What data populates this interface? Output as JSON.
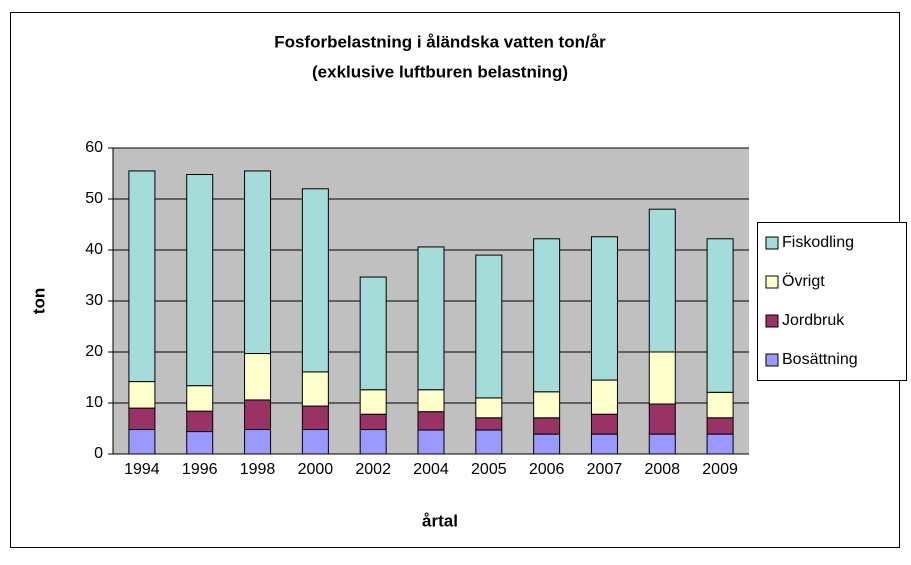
{
  "chart_data": {
    "type": "stacked_bar",
    "title": "Fosforbelastning i åländska vatten ton/år",
    "subtitle": "(exklusive luftburen belastning)",
    "x_label": "årtal",
    "y_label": "ton",
    "categories": [
      "1994",
      "1996",
      "1998",
      "2000",
      "2002",
      "2004",
      "2005",
      "2006",
      "2007",
      "2008",
      "2009"
    ],
    "series": [
      {
        "name": "Bosättning",
        "color": "#9999ff",
        "values": [
          4.8,
          4.4,
          4.8,
          4.8,
          4.8,
          4.7,
          4.7,
          3.9,
          3.9,
          3.9,
          3.9
        ]
      },
      {
        "name": "Jordbruk",
        "color": "#993366",
        "values": [
          4.2,
          4.0,
          5.8,
          4.6,
          3.0,
          3.6,
          2.4,
          3.2,
          3.9,
          5.9,
          3.2
        ]
      },
      {
        "name": "Övrigt",
        "color": "#ffffcc",
        "values": [
          5.2,
          5.0,
          9.1,
          6.7,
          4.8,
          4.3,
          3.9,
          5.1,
          6.7,
          10.2,
          5.0
        ]
      },
      {
        "name": "Fiskodling",
        "color": "#a3dcd8",
        "values": [
          41.3,
          41.4,
          35.8,
          35.9,
          22.1,
          28.0,
          28.0,
          30.0,
          28.1,
          28.0,
          30.1
        ]
      }
    ],
    "ylim": [
      0,
      60
    ],
    "yticks": [
      0,
      10,
      20,
      30,
      40,
      50,
      60
    ],
    "grid": true,
    "legend": "right"
  }
}
